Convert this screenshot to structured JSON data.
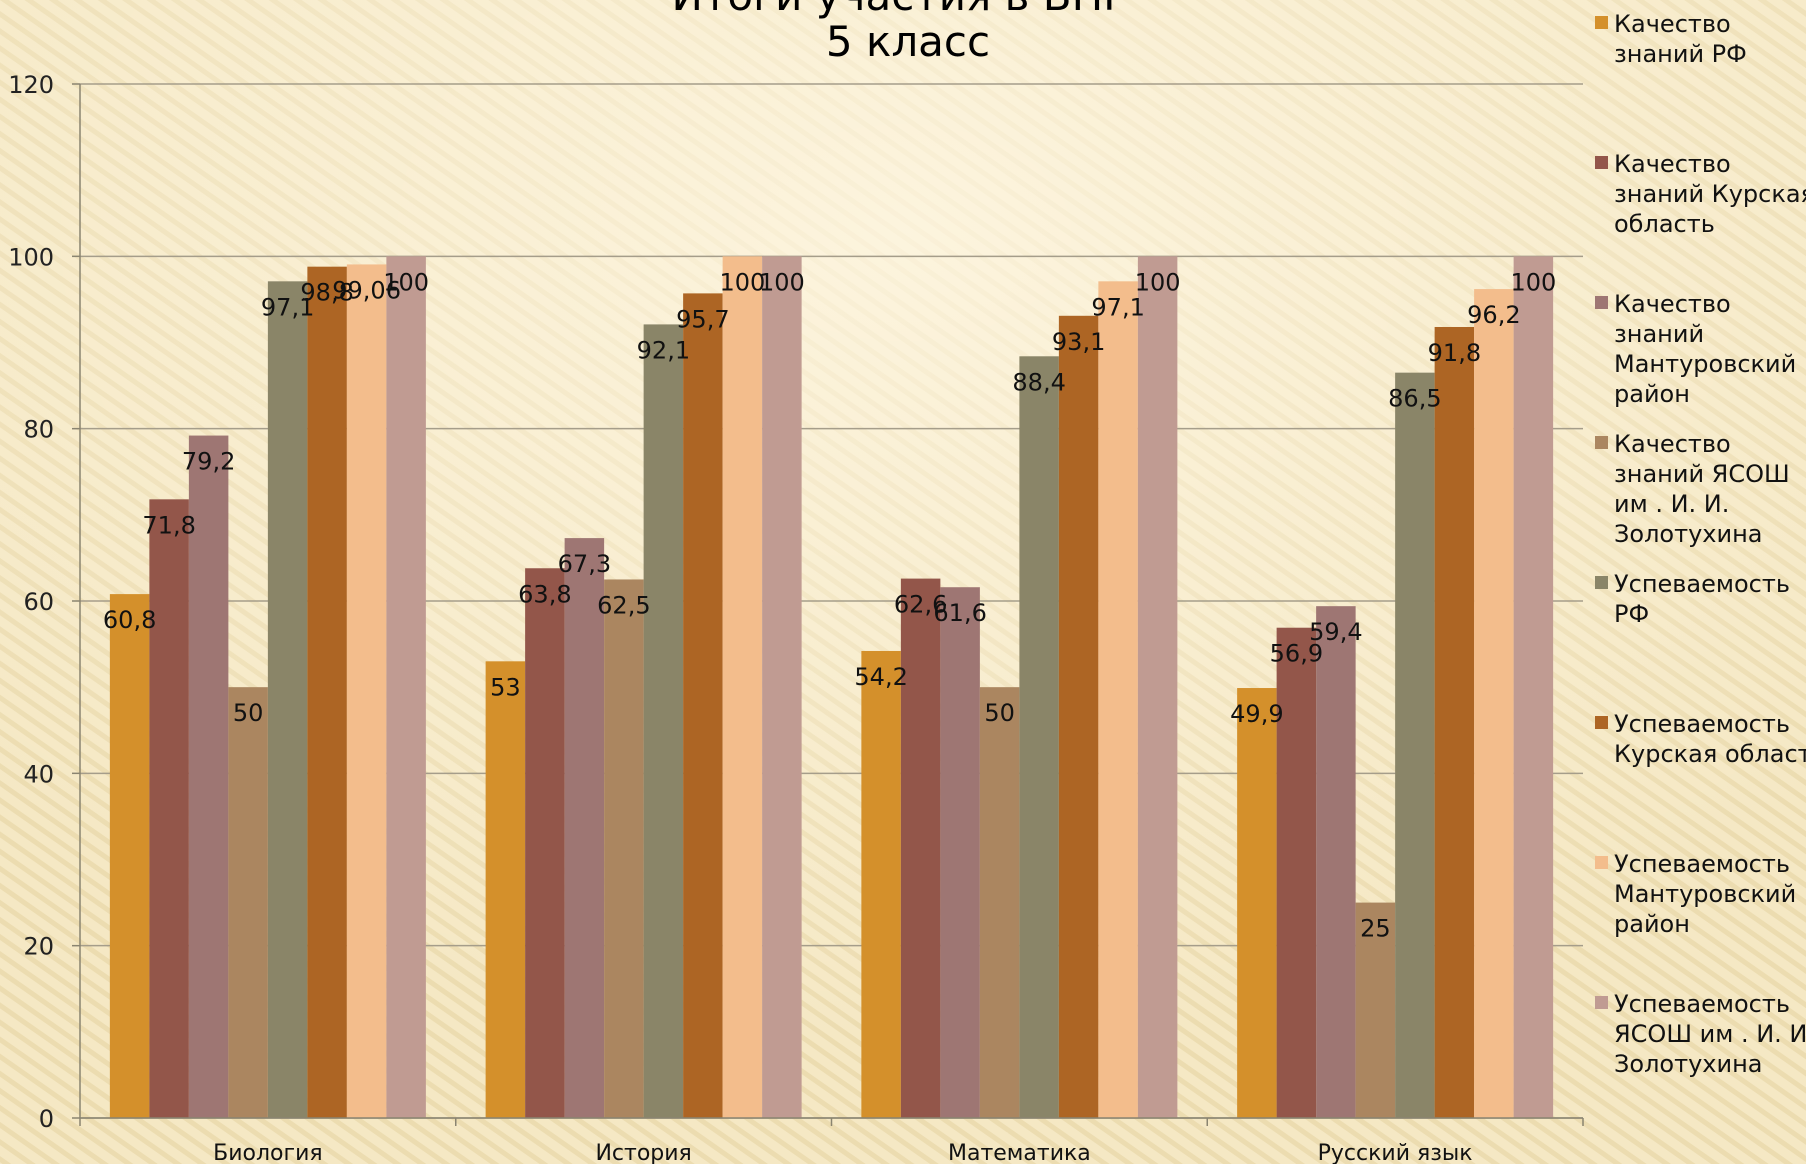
{
  "chart_data": {
    "type": "bar",
    "title_line1": "Итоги участия в ВПР",
    "title_line2": "5 класс",
    "categories": [
      "Биология",
      "История",
      "Математика",
      "Русский язык"
    ],
    "ylim": [
      0,
      120
    ],
    "yticks": [
      0,
      20,
      40,
      60,
      80,
      100,
      120
    ],
    "grid": true,
    "legend_position": "right",
    "series": [
      {
        "name": "Качество знаний РФ",
        "lines": [
          "Качество",
          "знаний РФ"
        ],
        "color": "#d4902b",
        "values": [
          60.8,
          53,
          54.2,
          49.9
        ],
        "labels": [
          "60,8",
          "53",
          "54,2",
          "49,9"
        ]
      },
      {
        "name": "Качество знаний Курская область",
        "lines": [
          "Качество",
          "знаний Курская",
          "область"
        ],
        "color": "#93564a",
        "values": [
          71.8,
          63.8,
          62.6,
          56.9
        ],
        "labels": [
          "71,8",
          "63,8",
          "62,6",
          "56,9"
        ]
      },
      {
        "name": "Качество знаний Мантуровский район",
        "lines": [
          "Качество",
          "знаний",
          "Мантуровский",
          "район"
        ],
        "color": "#9e7673",
        "values": [
          79.2,
          67.3,
          61.6,
          59.4
        ],
        "labels": [
          "79,2",
          "67,3",
          "61,6",
          "59,4"
        ]
      },
      {
        "name": "Качество знаний ЯСОШ им . И. И. Золотухина",
        "lines": [
          "Качество",
          "знаний ЯСОШ",
          "им . И. И.",
          "Золотухина"
        ],
        "color": "#ab8660",
        "values": [
          50,
          62.5,
          50,
          25
        ],
        "labels": [
          "50",
          "62,5",
          "50",
          "25"
        ]
      },
      {
        "name": "Успеваемость РФ",
        "lines": [
          "Успеваемость",
          "РФ"
        ],
        "color": "#8a8568",
        "values": [
          97.1,
          92.1,
          88.4,
          86.5
        ],
        "labels": [
          "97,1",
          "92,1",
          "88,4",
          "86,5"
        ]
      },
      {
        "name": "Успеваемость Курская область",
        "lines": [
          "Успеваемость",
          "Курская область"
        ],
        "color": "#ad6524",
        "values": [
          98.8,
          95.7,
          93.1,
          91.8
        ],
        "labels": [
          "98,8",
          "95,7",
          "93,1",
          "91,8"
        ]
      },
      {
        "name": "Успеваемость Мантуровский район",
        "lines": [
          "Успеваемость",
          "Мантуровский",
          "район"
        ],
        "color": "#f3bd8c",
        "values": [
          99.06,
          100,
          97.1,
          96.2
        ],
        "labels": [
          "99,06",
          "100",
          "97,1",
          "96,2"
        ]
      },
      {
        "name": "Успеваемость ЯСОШ им . И. И. Золотухина",
        "lines": [
          "Успеваемость",
          "ЯСОШ им . И. И.",
          "Золотухина"
        ],
        "color": "#c09b92",
        "values": [
          100,
          100,
          100,
          100
        ],
        "labels": [
          "100",
          "100",
          "100",
          "100"
        ]
      }
    ]
  }
}
